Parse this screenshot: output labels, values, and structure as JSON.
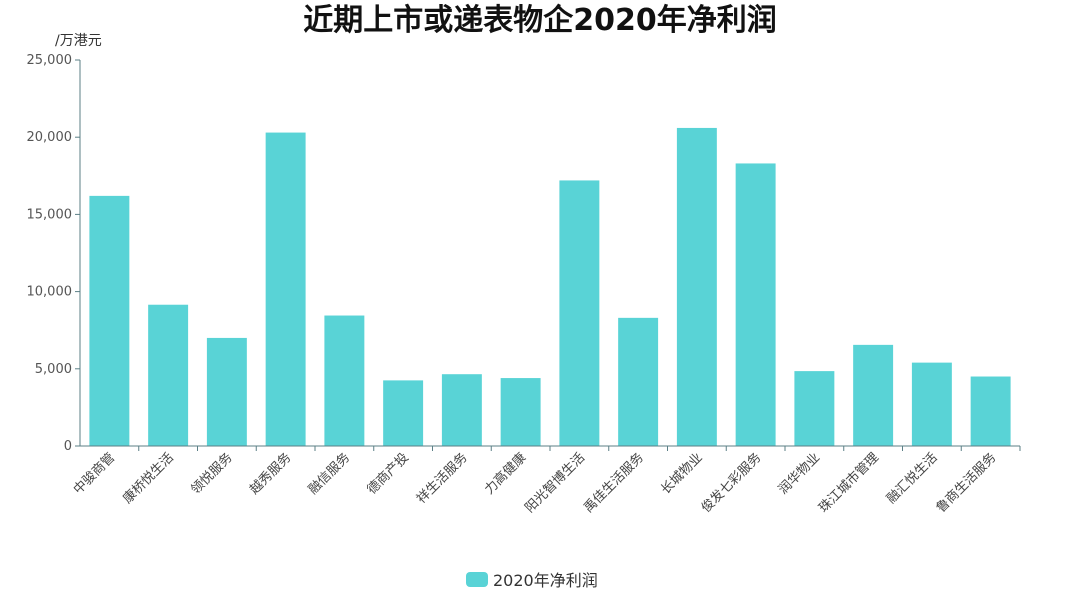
{
  "chart_data": {
    "type": "bar",
    "title": "近期上市或递表物企2020年净利润",
    "ylabel": "/万港元",
    "xlabel": "",
    "ylim": [
      0,
      25000
    ],
    "yticks": [
      0,
      5000,
      10000,
      15000,
      20000,
      25000
    ],
    "ytick_labels": [
      "0",
      "5,000",
      "10,000",
      "15,000",
      "20,000",
      "25,000"
    ],
    "grid": false,
    "legend_position": "bottom-center",
    "categories": [
      "中骏商管",
      "康桥悦生活",
      "领悦服务",
      "越秀服务",
      "融信服务",
      "德商产投",
      "祥生活服务",
      "力高健康",
      "阳光智博生活",
      "禹佳生活服务",
      "长城物业",
      "俊发七彩服务",
      "润华物业",
      "珠江城市管理",
      "融汇悦生活",
      "鲁商生活服务"
    ],
    "series": [
      {
        "name": "2020年净利润",
        "color": "#59d3d6",
        "values": [
          16200,
          9150,
          7000,
          20300,
          8450,
          4250,
          4650,
          4400,
          17200,
          8300,
          20600,
          18300,
          4850,
          6550,
          5400,
          4500
        ]
      }
    ]
  }
}
